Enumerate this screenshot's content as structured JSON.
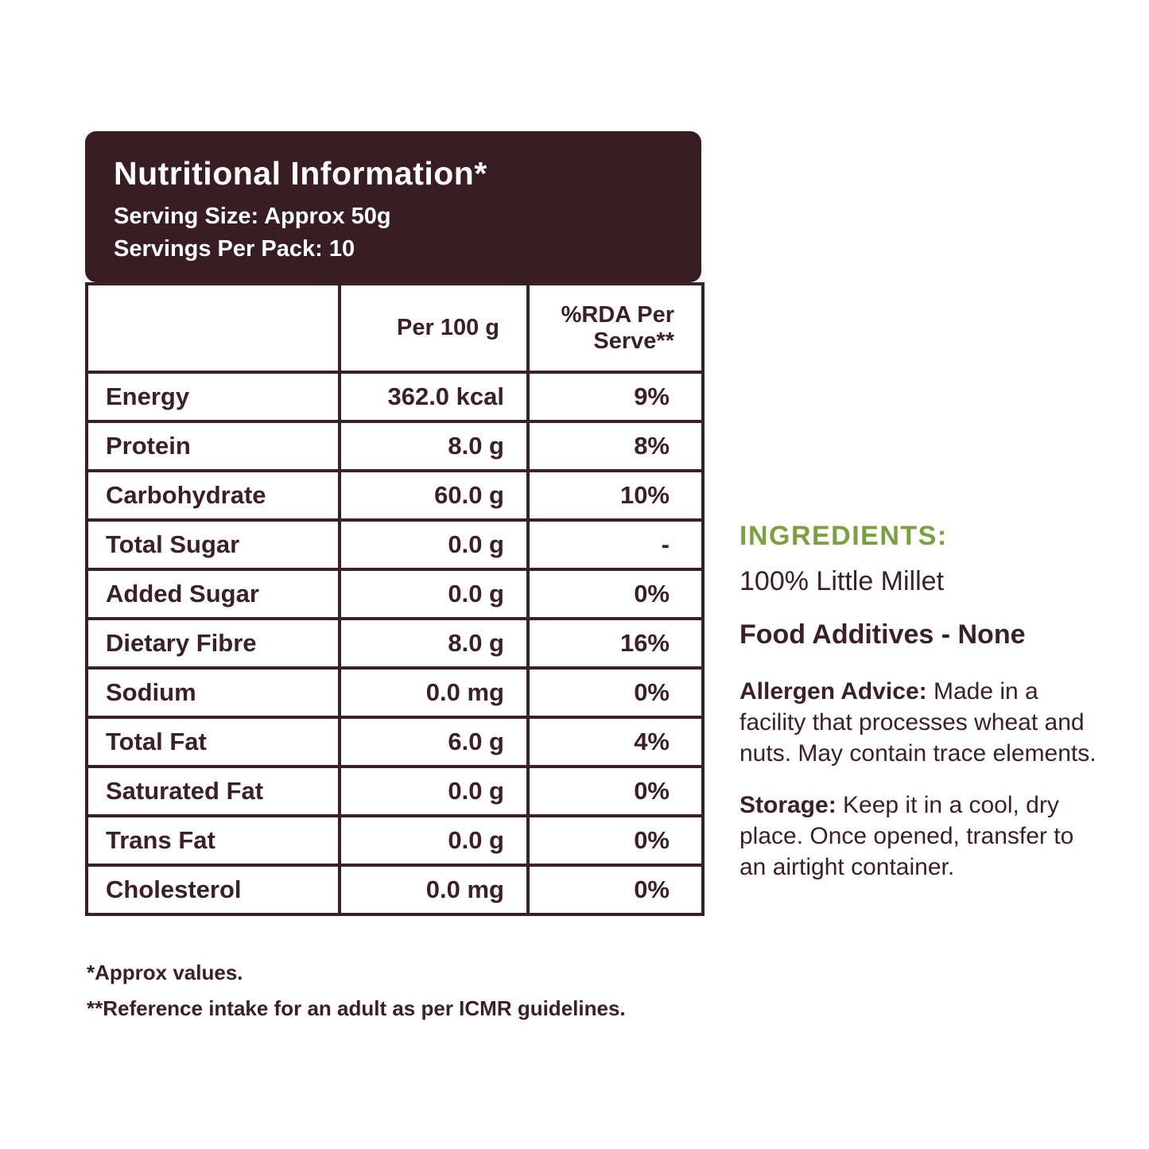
{
  "colors": {
    "brand_brown": "#3B2025",
    "panel_brown": "#381D22",
    "accent_green": "#7AA13E",
    "text_white": "#FFFFFF"
  },
  "header": {
    "title": "Nutritional Information*",
    "serving_size": "Serving Size: Approx 50g",
    "servings_per_pack": "Servings Per Pack: 10"
  },
  "table": {
    "col_headers": {
      "nutrient": "",
      "per_100g": "Per 100 g",
      "rda_per_serve": "%RDA Per Serve**"
    },
    "rows": [
      {
        "label": "Energy",
        "per_100g": "362.0 kcal",
        "rda": "9%"
      },
      {
        "label": "Protein",
        "per_100g": "8.0 g",
        "rda": "8%"
      },
      {
        "label": "Carbohydrate",
        "per_100g": "60.0 g",
        "rda": "10%"
      },
      {
        "label": "Total Sugar",
        "per_100g": "0.0 g",
        "rda": "-"
      },
      {
        "label": "Added Sugar",
        "per_100g": "0.0 g",
        "rda": "0%"
      },
      {
        "label": "Dietary Fibre",
        "per_100g": "8.0 g",
        "rda": "16%"
      },
      {
        "label": "Sodium",
        "per_100g": "0.0 mg",
        "rda": "0%"
      },
      {
        "label": "Total Fat",
        "per_100g": "6.0 g",
        "rda": "4%"
      },
      {
        "label": "Saturated Fat",
        "per_100g": "0.0 g",
        "rda": "0%"
      },
      {
        "label": "Trans Fat",
        "per_100g": "0.0 g",
        "rda": "0%"
      },
      {
        "label": "Cholesterol",
        "per_100g": "0.0 mg",
        "rda": "0%"
      }
    ]
  },
  "footnotes": {
    "approx": "*Approx values.",
    "reference": "**Reference intake for an adult as per ICMR guidelines."
  },
  "side_panel": {
    "ingredients_heading": "INGREDIENTS:",
    "ingredients_value": "100% Little Millet",
    "food_additives": "Food Additives - None",
    "allergen_label": "Allergen Advice:",
    "allergen_text": " Made in a facility that processes wheat and nuts. May contain trace elements.",
    "storage_label": "Storage:",
    "storage_text": " Keep it in a cool, dry place. Once opened, transfer to an airtight container."
  }
}
